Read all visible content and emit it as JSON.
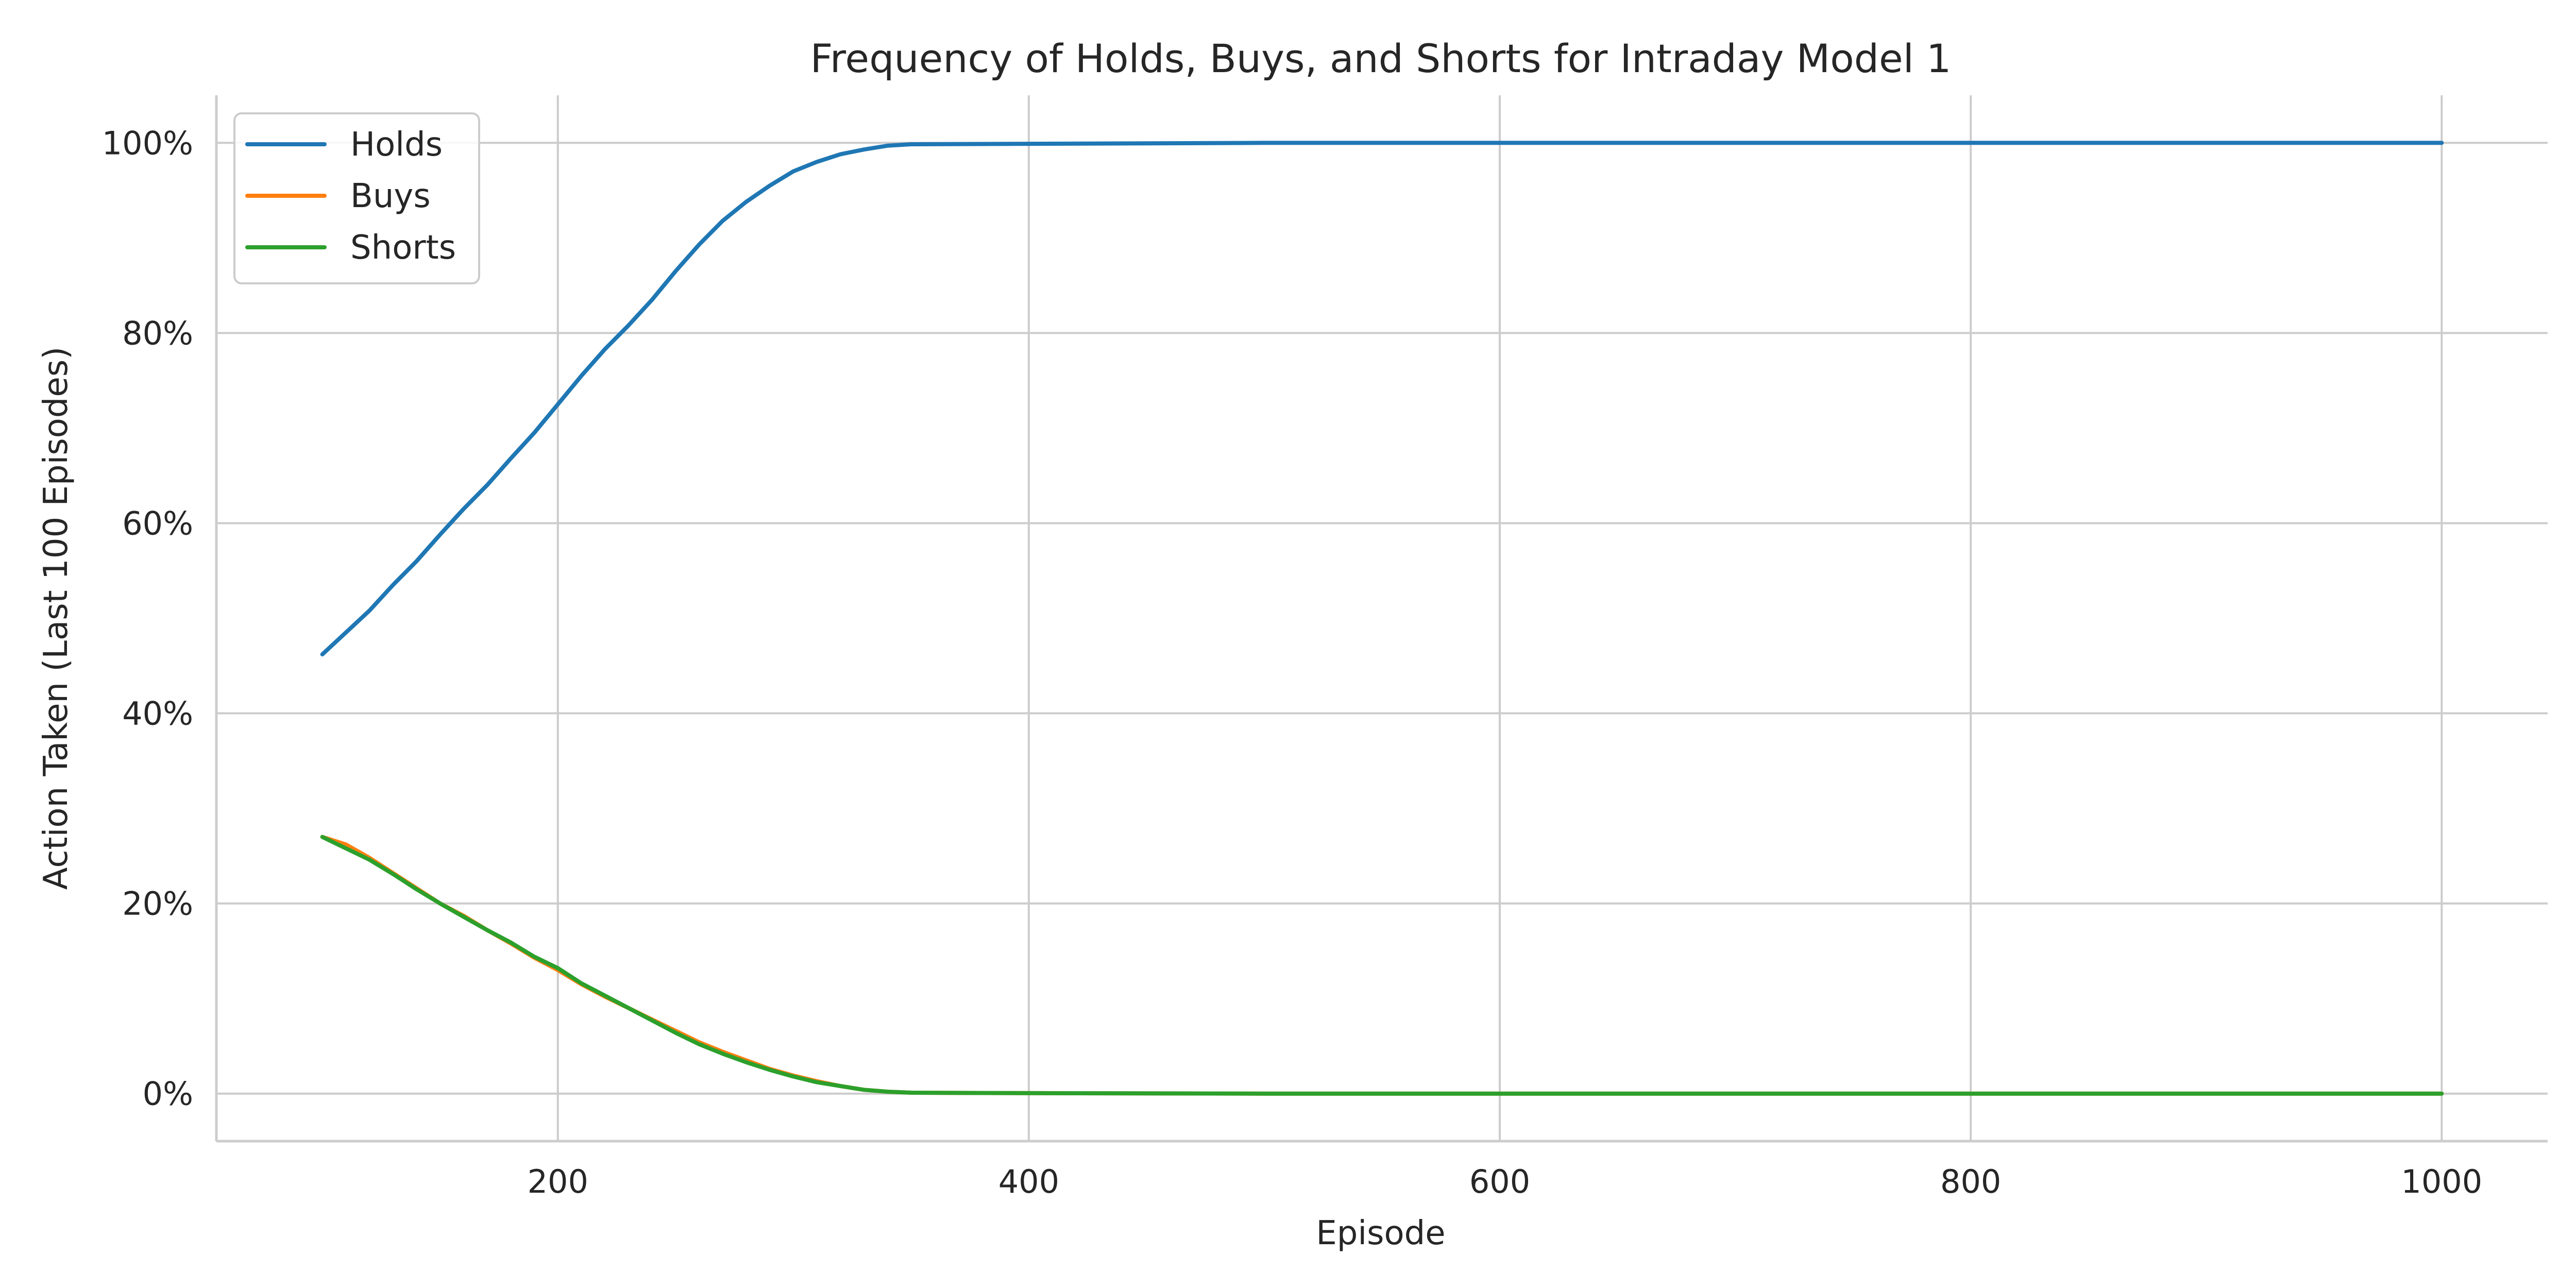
{
  "chart_data": {
    "type": "line",
    "title": "Frequency of Holds, Buys, and Shorts for Intraday Model 1",
    "xlabel": "Episode",
    "ylabel": "Action Taken (Last 100 Episodes)",
    "xlim": [
      55,
      1045
    ],
    "ylim": [
      -5,
      105
    ],
    "x_ticks": [
      200,
      400,
      600,
      800,
      1000
    ],
    "x_tick_labels": [
      "200",
      "400",
      "600",
      "800",
      "1000"
    ],
    "y_ticks": [
      0,
      20,
      40,
      60,
      80,
      100
    ],
    "y_tick_labels": [
      "0%",
      "20%",
      "40%",
      "60%",
      "80%",
      "100%"
    ],
    "grid": true,
    "legend_position": "top-left",
    "series": [
      {
        "name": "Holds",
        "color": "#1f77b4",
        "points": [
          [
            100,
            46.2
          ],
          [
            110,
            48.5
          ],
          [
            120,
            50.8
          ],
          [
            130,
            53.5
          ],
          [
            140,
            56.0
          ],
          [
            150,
            58.8
          ],
          [
            160,
            61.5
          ],
          [
            170,
            64.0
          ],
          [
            180,
            66.8
          ],
          [
            190,
            69.5
          ],
          [
            200,
            72.5
          ],
          [
            210,
            75.5
          ],
          [
            220,
            78.3
          ],
          [
            230,
            80.8
          ],
          [
            240,
            83.5
          ],
          [
            250,
            86.5
          ],
          [
            260,
            89.3
          ],
          [
            270,
            91.8
          ],
          [
            280,
            93.8
          ],
          [
            290,
            95.5
          ],
          [
            300,
            97.0
          ],
          [
            310,
            98.0
          ],
          [
            320,
            98.8
          ],
          [
            330,
            99.3
          ],
          [
            340,
            99.7
          ],
          [
            350,
            99.85
          ],
          [
            400,
            99.9
          ],
          [
            500,
            100
          ],
          [
            600,
            100
          ],
          [
            700,
            100
          ],
          [
            800,
            100
          ],
          [
            900,
            100
          ],
          [
            1000,
            100
          ]
        ]
      },
      {
        "name": "Buys",
        "color": "#ff7f0e",
        "points": [
          [
            100,
            27.0
          ],
          [
            110,
            26.2
          ],
          [
            120,
            24.8
          ],
          [
            130,
            23.2
          ],
          [
            140,
            21.6
          ],
          [
            150,
            20.0
          ],
          [
            160,
            18.7
          ],
          [
            170,
            17.2
          ],
          [
            180,
            15.8
          ],
          [
            190,
            14.3
          ],
          [
            200,
            13.0
          ],
          [
            210,
            11.5
          ],
          [
            220,
            10.2
          ],
          [
            230,
            9.0
          ],
          [
            240,
            7.8
          ],
          [
            250,
            6.6
          ],
          [
            260,
            5.4
          ],
          [
            270,
            4.4
          ],
          [
            280,
            3.5
          ],
          [
            290,
            2.6
          ],
          [
            300,
            1.9
          ],
          [
            310,
            1.3
          ],
          [
            320,
            0.8
          ],
          [
            330,
            0.4
          ],
          [
            340,
            0.2
          ],
          [
            350,
            0.1
          ],
          [
            400,
            0.05
          ],
          [
            500,
            0
          ],
          [
            600,
            0
          ],
          [
            700,
            0
          ],
          [
            800,
            0
          ],
          [
            900,
            0
          ],
          [
            1000,
            0
          ]
        ]
      },
      {
        "name": "Shorts",
        "color": "#2ca02c",
        "points": [
          [
            100,
            27.0
          ],
          [
            110,
            25.8
          ],
          [
            120,
            24.6
          ],
          [
            130,
            23.1
          ],
          [
            140,
            21.5
          ],
          [
            150,
            20.0
          ],
          [
            160,
            18.6
          ],
          [
            170,
            17.2
          ],
          [
            180,
            15.9
          ],
          [
            190,
            14.4
          ],
          [
            200,
            13.2
          ],
          [
            210,
            11.6
          ],
          [
            220,
            10.3
          ],
          [
            230,
            9.0
          ],
          [
            240,
            7.7
          ],
          [
            250,
            6.4
          ],
          [
            260,
            5.2
          ],
          [
            270,
            4.2
          ],
          [
            280,
            3.3
          ],
          [
            290,
            2.5
          ],
          [
            300,
            1.8
          ],
          [
            310,
            1.2
          ],
          [
            320,
            0.8
          ],
          [
            330,
            0.4
          ],
          [
            340,
            0.2
          ],
          [
            350,
            0.1
          ],
          [
            400,
            0.05
          ],
          [
            500,
            0
          ],
          [
            600,
            0
          ],
          [
            700,
            0
          ],
          [
            800,
            0
          ],
          [
            900,
            0
          ],
          [
            1000,
            0
          ]
        ]
      }
    ]
  }
}
